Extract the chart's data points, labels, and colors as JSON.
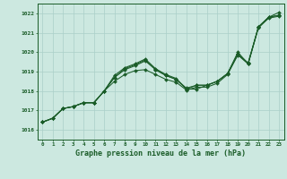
{
  "title": "Graphe pression niveau de la mer (hPa)",
  "bg_color": "#cce8e0",
  "grid_color": "#aacfc8",
  "line_color": "#1a5c28",
  "marker_color": "#1a5c28",
  "xlim": [
    -0.5,
    23.5
  ],
  "ylim": [
    1015.5,
    1022.5
  ],
  "yticks": [
    1016,
    1017,
    1018,
    1019,
    1020,
    1021,
    1022
  ],
  "xticks": [
    0,
    1,
    2,
    3,
    4,
    5,
    6,
    7,
    8,
    9,
    10,
    11,
    12,
    13,
    14,
    15,
    16,
    17,
    18,
    19,
    20,
    21,
    22,
    23
  ],
  "series": [
    [
      1016.4,
      1016.6,
      1017.1,
      1017.2,
      1017.4,
      1017.4,
      1018.0,
      1018.8,
      1019.2,
      1019.4,
      1019.65,
      1019.15,
      1018.85,
      1018.65,
      1018.1,
      1018.1,
      1018.3,
      1018.5,
      1018.9,
      1020.0,
      1019.4,
      1021.3,
      1021.8,
      1022.05
    ],
    [
      1016.4,
      1016.6,
      1017.1,
      1017.2,
      1017.4,
      1017.4,
      1018.0,
      1018.7,
      1019.15,
      1019.35,
      1019.6,
      1019.1,
      1018.8,
      1018.6,
      1018.15,
      1018.3,
      1018.3,
      1018.5,
      1018.9,
      1019.9,
      1019.45,
      1021.3,
      1021.8,
      1021.9
    ],
    [
      1016.4,
      1016.6,
      1017.1,
      1017.2,
      1017.4,
      1017.4,
      1018.0,
      1018.5,
      1018.85,
      1019.05,
      1019.1,
      1018.85,
      1018.6,
      1018.45,
      1018.05,
      1018.2,
      1018.2,
      1018.4,
      1018.85,
      1019.85,
      1019.4,
      1021.25,
      1021.75,
      1021.85
    ],
    [
      1016.4,
      1016.6,
      1017.1,
      1017.2,
      1017.4,
      1017.4,
      1018.0,
      1018.7,
      1019.1,
      1019.3,
      1019.55,
      1019.1,
      1018.8,
      1018.6,
      1018.1,
      1018.3,
      1018.3,
      1018.5,
      1018.9,
      1019.9,
      1019.4,
      1021.3,
      1021.8,
      1021.9
    ]
  ]
}
